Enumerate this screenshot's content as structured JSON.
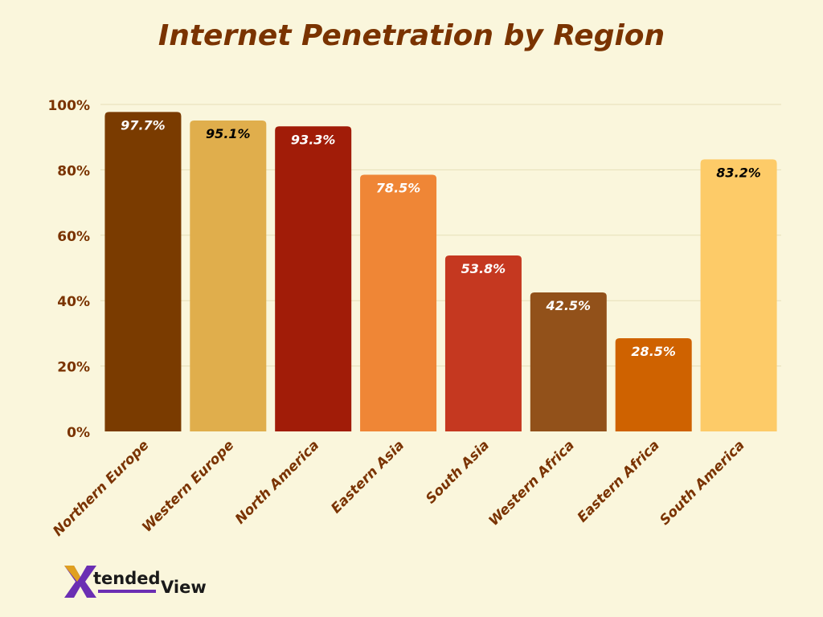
{
  "chart_data": {
    "type": "bar",
    "title": "Internet Penetration by Region",
    "categories": [
      "Northern Europe",
      "Western Europe",
      "North America",
      "Eastern Asia",
      "South Asia",
      "Western Africa",
      "Eastern Africa",
      "South America"
    ],
    "values": [
      97.7,
      95.1,
      93.3,
      78.5,
      53.8,
      42.5,
      28.5,
      83.2
    ],
    "value_labels": [
      "97.7%",
      "95.1%",
      "93.3%",
      "78.5%",
      "53.8%",
      "42.5%",
      "28.5%",
      "83.2%"
    ],
    "bar_colors": [
      "#7a3b00",
      "#e0ae4c",
      "#a11c08",
      "#ef8636",
      "#c53820",
      "#92511a",
      "#cf6200",
      "#fdcb68"
    ],
    "label_colors": [
      "#ffffff",
      "#000000",
      "#ffffff",
      "#ffffff",
      "#ffffff",
      "#ffffff",
      "#ffffff",
      "#000000"
    ],
    "yticks": [
      "0%",
      "20%",
      "40%",
      "60%",
      "80%",
      "100%"
    ],
    "ylim": [
      0,
      100
    ],
    "grid": true,
    "xlabel": "",
    "ylabel": ""
  },
  "logo": {
    "mark": "X",
    "word1": "tended",
    "word2": "View"
  },
  "colors": {
    "background": "#faf6dc",
    "text": "#7a3300",
    "grid": "#e6dfb8",
    "logo_purple": "#6b2fb3",
    "logo_gold": "#e0a020"
  }
}
